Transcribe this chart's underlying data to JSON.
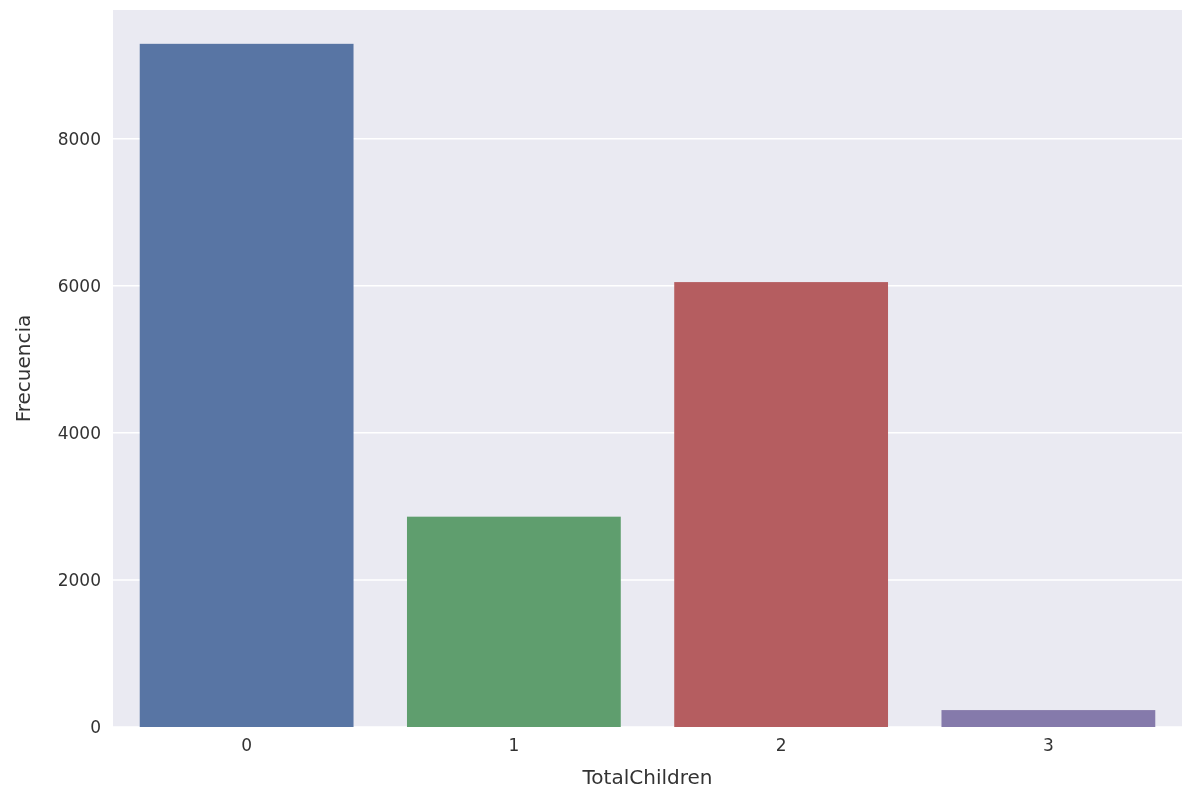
{
  "chart_data": {
    "type": "bar",
    "xlabel": "TotalChildren",
    "ylabel": "Frecuencia",
    "categories": [
      "0",
      "1",
      "2",
      "3"
    ],
    "values": [
      9290,
      2860,
      6050,
      230
    ],
    "colors": [
      "#5875a4",
      "#5f9e6e",
      "#b55d60",
      "#857aab"
    ],
    "ylim": [
      0,
      9750
    ],
    "yticks": [
      0,
      2000,
      4000,
      6000,
      8000
    ],
    "grid": "y"
  }
}
